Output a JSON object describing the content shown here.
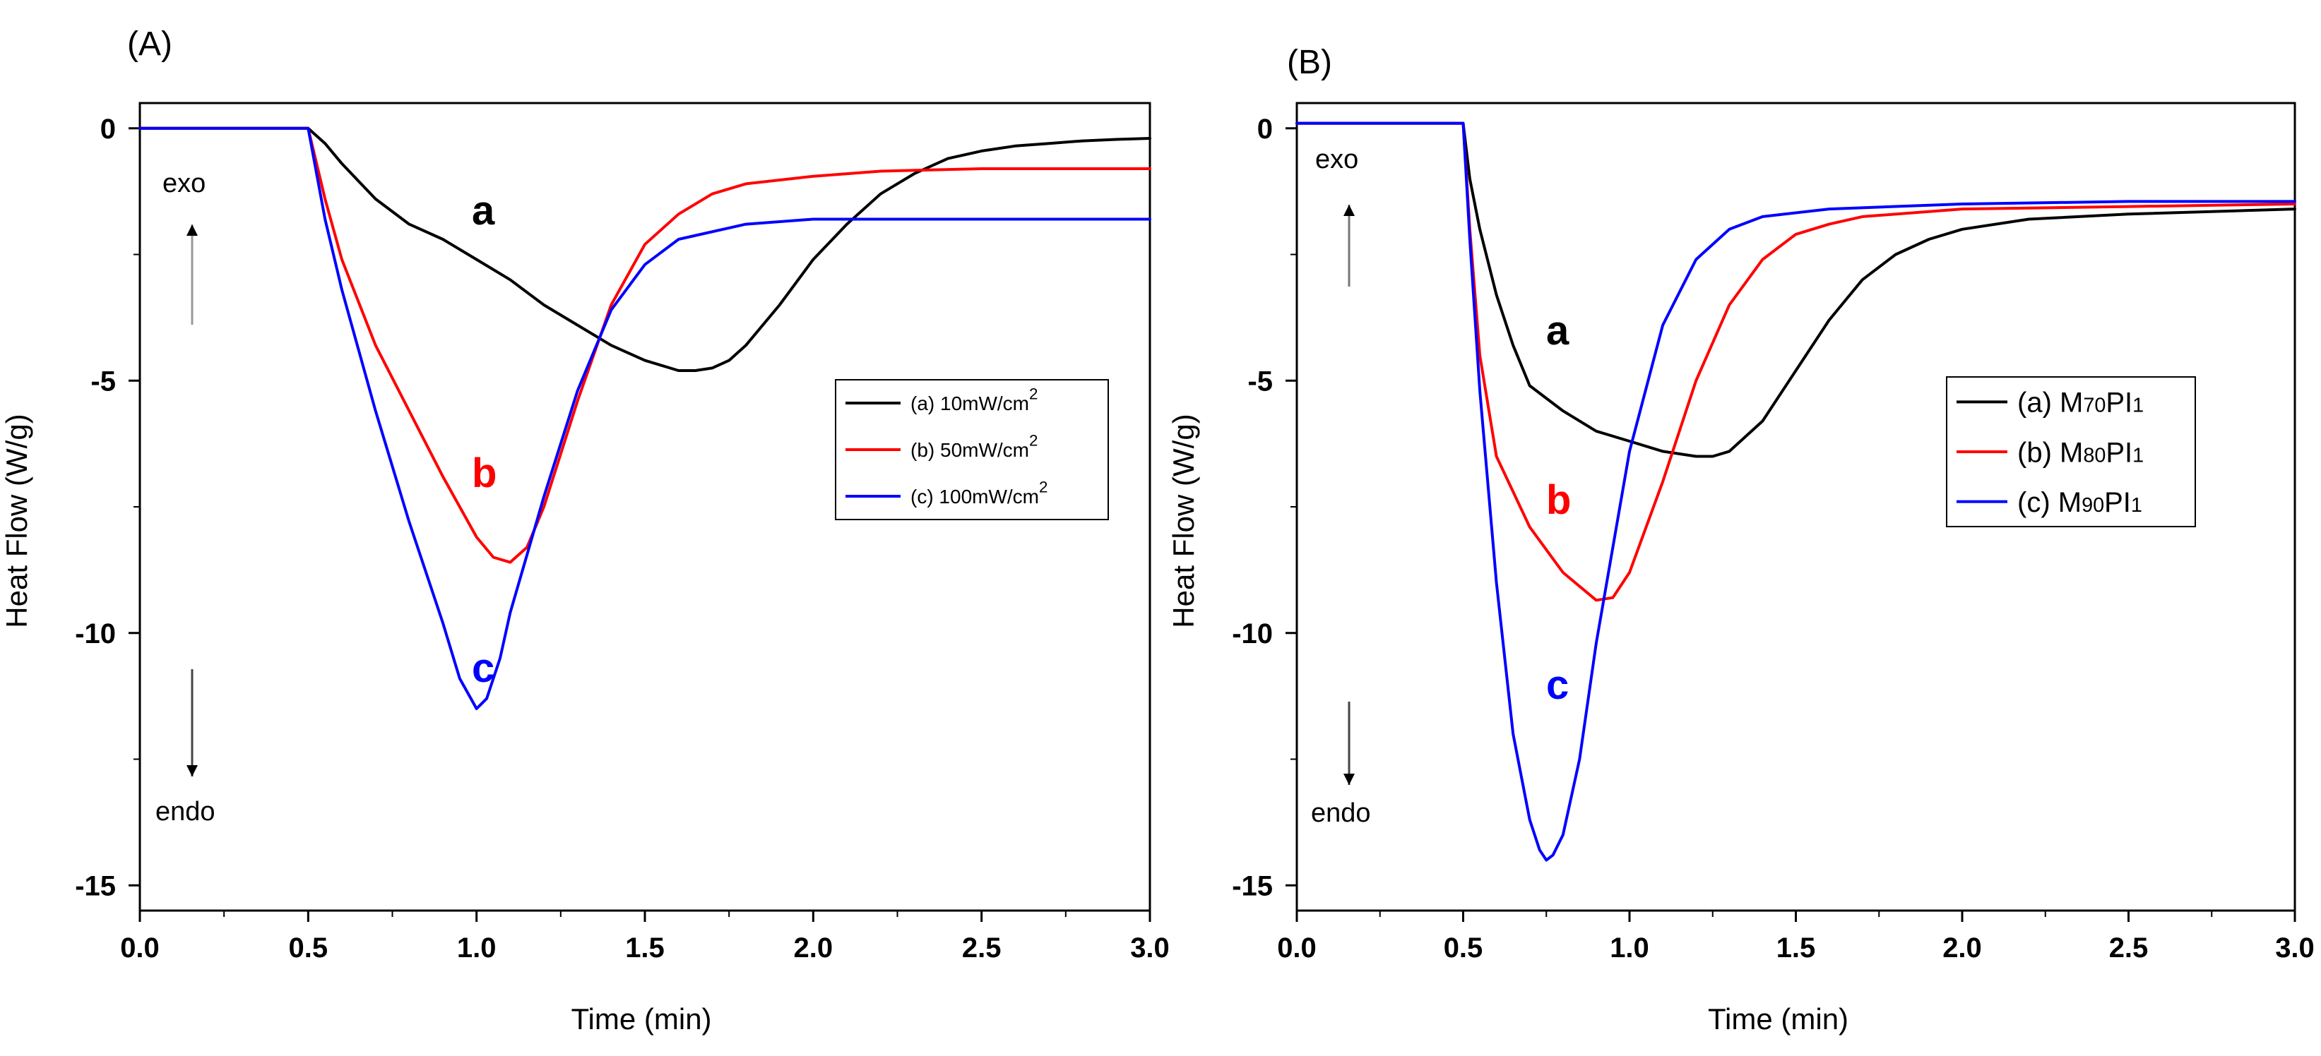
{
  "chart_data": [
    {
      "type": "line",
      "panel_label": "(A)",
      "xlabel": "Time (min)",
      "ylabel": "Heat Flow (W/g)",
      "xlim": [
        0,
        3.0
      ],
      "ylim": [
        -15.5,
        0.5
      ],
      "xticks": [
        "0.0",
        "0.5",
        "1.0",
        "1.5",
        "2.0",
        "2.5",
        "3.0"
      ],
      "yticks": [
        "0",
        "-5",
        "-10",
        "-15"
      ],
      "legend_placement": "right-middle",
      "annotations": {
        "exo": "exo",
        "endo": "endo"
      },
      "series": [
        {
          "name": "(a) 10mW/cm",
          "superscript": "2",
          "curve_label": "a",
          "color": "#000000",
          "x": [
            0,
            0.5,
            0.55,
            0.6,
            0.7,
            0.8,
            0.9,
            1.0,
            1.1,
            1.2,
            1.3,
            1.4,
            1.5,
            1.6,
            1.65,
            1.7,
            1.75,
            1.8,
            1.9,
            2.0,
            2.1,
            2.2,
            2.3,
            2.4,
            2.5,
            2.6,
            2.7,
            2.8,
            2.9,
            3.0
          ],
          "y": [
            0,
            0,
            -0.3,
            -0.7,
            -1.4,
            -1.9,
            -2.2,
            -2.6,
            -3.0,
            -3.5,
            -3.9,
            -4.3,
            -4.6,
            -4.8,
            -4.8,
            -4.75,
            -4.6,
            -4.3,
            -3.5,
            -2.6,
            -1.9,
            -1.3,
            -0.9,
            -0.6,
            -0.45,
            -0.35,
            -0.3,
            -0.25,
            -0.22,
            -0.2
          ]
        },
        {
          "name": "(b) 50mW/cm",
          "superscript": "2",
          "curve_label": "b",
          "color": "#ff0000",
          "x": [
            0,
            0.5,
            0.55,
            0.6,
            0.7,
            0.8,
            0.9,
            1.0,
            1.05,
            1.1,
            1.15,
            1.2,
            1.3,
            1.4,
            1.5,
            1.6,
            1.7,
            1.8,
            2.0,
            2.2,
            2.5,
            3.0
          ],
          "y": [
            0,
            0,
            -1.4,
            -2.6,
            -4.3,
            -5.6,
            -6.9,
            -8.1,
            -8.5,
            -8.6,
            -8.3,
            -7.5,
            -5.4,
            -3.5,
            -2.3,
            -1.7,
            -1.3,
            -1.1,
            -0.95,
            -0.85,
            -0.8,
            -0.8
          ]
        },
        {
          "name": "(c) 100mW/cm",
          "superscript": "2",
          "curve_label": "c",
          "color": "#0000ff",
          "x": [
            0,
            0.5,
            0.55,
            0.6,
            0.7,
            0.8,
            0.9,
            0.95,
            1.0,
            1.03,
            1.07,
            1.1,
            1.2,
            1.3,
            1.4,
            1.5,
            1.6,
            1.8,
            2.0,
            2.5,
            3.0
          ],
          "y": [
            0,
            0,
            -1.8,
            -3.2,
            -5.6,
            -7.8,
            -9.8,
            -10.9,
            -11.5,
            -11.3,
            -10.5,
            -9.6,
            -7.3,
            -5.2,
            -3.6,
            -2.7,
            -2.2,
            -1.9,
            -1.8,
            -1.8,
            -1.8
          ]
        }
      ]
    },
    {
      "type": "line",
      "panel_label": "(B)",
      "xlabel": "Time (min)",
      "ylabel": "Heat Flow (W/g)",
      "xlim": [
        0,
        3.0
      ],
      "ylim": [
        -15.5,
        0.5
      ],
      "xticks": [
        "0.0",
        "0.5",
        "1.0",
        "1.5",
        "2.0",
        "2.5",
        "3.0"
      ],
      "yticks": [
        "0",
        "-5",
        "-10",
        "-15"
      ],
      "legend_placement": "right-middle",
      "annotations": {
        "exo": "exo",
        "endo": "endo"
      },
      "series": [
        {
          "name": "(a) M70PI1",
          "name_parts": [
            "(a) M",
            "70",
            "PI",
            "1"
          ],
          "curve_label": "a",
          "color": "#000000",
          "x": [
            0,
            0.5,
            0.52,
            0.55,
            0.6,
            0.65,
            0.7,
            0.8,
            0.9,
            1.0,
            1.1,
            1.2,
            1.25,
            1.3,
            1.4,
            1.5,
            1.6,
            1.7,
            1.8,
            1.9,
            2.0,
            2.2,
            2.5,
            3.0
          ],
          "y": [
            0.1,
            0.1,
            -1.0,
            -2.0,
            -3.3,
            -4.3,
            -5.1,
            -5.6,
            -6.0,
            -6.2,
            -6.4,
            -6.5,
            -6.5,
            -6.4,
            -5.8,
            -4.8,
            -3.8,
            -3.0,
            -2.5,
            -2.2,
            -2.0,
            -1.8,
            -1.7,
            -1.6
          ]
        },
        {
          "name": "(b) M80PI1",
          "name_parts": [
            "(b) M",
            "80",
            "PI",
            "1"
          ],
          "curve_label": "b",
          "color": "#ff0000",
          "x": [
            0,
            0.5,
            0.52,
            0.55,
            0.6,
            0.7,
            0.8,
            0.9,
            0.95,
            1.0,
            1.1,
            1.2,
            1.3,
            1.4,
            1.5,
            1.6,
            1.7,
            2.0,
            2.5,
            3.0
          ],
          "y": [
            0.1,
            0.1,
            -2.0,
            -4.5,
            -6.5,
            -7.9,
            -8.8,
            -9.35,
            -9.3,
            -8.8,
            -7.0,
            -5.0,
            -3.5,
            -2.6,
            -2.1,
            -1.9,
            -1.75,
            -1.6,
            -1.55,
            -1.5
          ]
        },
        {
          "name": "(c) M90PI1",
          "name_parts": [
            "(c) M",
            "90",
            "PI",
            "1"
          ],
          "curve_label": "c",
          "color": "#0000ff",
          "x": [
            0,
            0.5,
            0.52,
            0.55,
            0.6,
            0.65,
            0.7,
            0.73,
            0.75,
            0.77,
            0.8,
            0.85,
            0.9,
            1.0,
            1.1,
            1.2,
            1.3,
            1.4,
            1.6,
            2.0,
            2.5,
            3.0
          ],
          "y": [
            0.1,
            0.1,
            -2.2,
            -5.2,
            -9.0,
            -12.0,
            -13.7,
            -14.3,
            -14.5,
            -14.4,
            -14.0,
            -12.5,
            -10.2,
            -6.4,
            -3.9,
            -2.6,
            -2.0,
            -1.75,
            -1.6,
            -1.5,
            -1.45,
            -1.45
          ]
        }
      ]
    }
  ]
}
